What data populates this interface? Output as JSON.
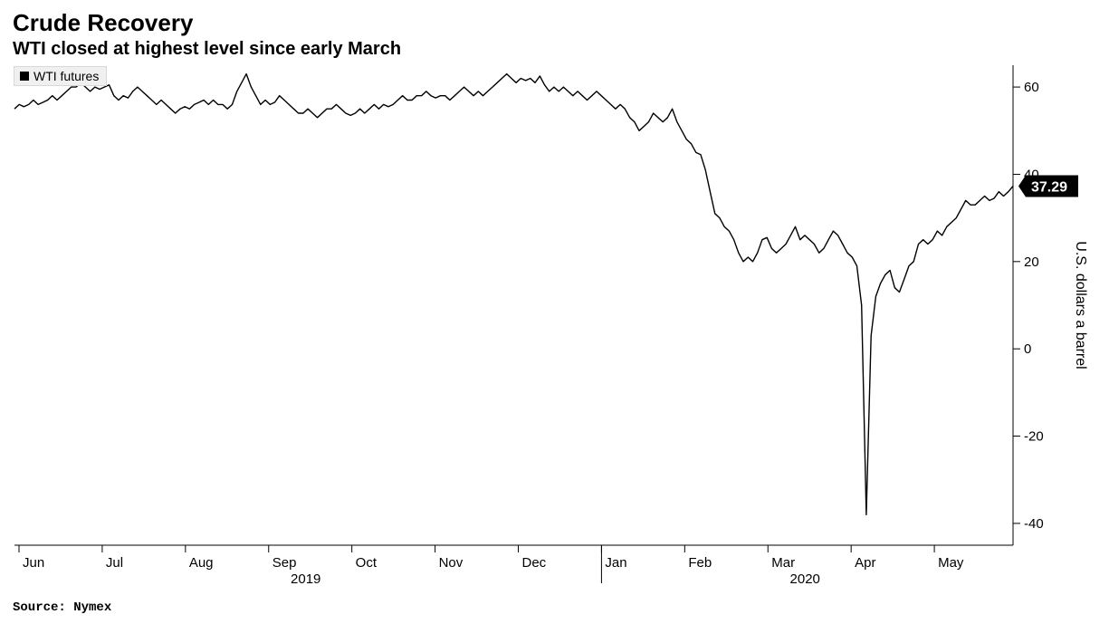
{
  "title": "Crude Recovery",
  "subtitle": "WTI closed at highest level since early March",
  "legend": {
    "label": "WTI futures",
    "marker_color": "#000000"
  },
  "y_axis": {
    "title": "U.S. dollars a barrel",
    "min": -45,
    "max": 65,
    "ticks": [
      -40,
      -20,
      0,
      20,
      40,
      60
    ]
  },
  "x_axis": {
    "labels": [
      "Jun",
      "Jul",
      "Aug",
      "Sep",
      "Oct",
      "Nov",
      "Dec",
      "Jan",
      "Feb",
      "Mar",
      "Apr",
      "May"
    ],
    "year_groups": [
      {
        "label": "2019",
        "center_between": [
          2,
          4
        ]
      },
      {
        "label": "2020",
        "center_between": [
          8,
          10
        ]
      }
    ],
    "year_divider_after_index": 6
  },
  "last_value": 37.29,
  "chart_style": {
    "line_color": "#000000",
    "line_width": 1.4,
    "badge_bg": "#000000",
    "badge_text": "#ffffff",
    "tick_color": "#000000",
    "axis_color": "#000000",
    "plot_bg": "#ffffff",
    "title_fontsize": 26,
    "subtitle_fontsize": 20,
    "tick_fontsize": 15
  },
  "series": [
    55,
    56,
    55.5,
    56,
    57,
    56,
    56.5,
    57,
    58,
    57,
    58,
    59,
    60,
    60,
    61,
    60,
    59,
    60,
    59.5,
    60,
    60.5,
    58,
    57,
    58,
    57.5,
    59,
    60,
    59,
    58,
    57,
    56,
    57,
    56,
    55,
    54,
    55,
    55.5,
    55,
    56,
    56.5,
    57,
    56,
    57,
    56,
    56,
    55,
    56,
    59,
    61,
    63,
    60,
    58,
    56,
    57,
    56,
    56.5,
    58,
    57,
    56,
    55,
    54,
    54,
    55,
    54,
    53,
    54,
    55,
    55,
    56,
    55,
    54,
    53.5,
    54,
    55,
    54,
    55,
    56,
    55,
    56,
    55.5,
    56,
    57,
    58,
    57,
    57,
    58,
    58,
    59,
    58,
    57.5,
    58,
    58,
    57,
    58,
    59,
    60,
    59,
    58,
    59,
    58,
    59,
    60,
    61,
    62,
    63,
    62,
    61,
    62,
    61.5,
    62,
    61,
    62.5,
    60.5,
    59,
    60,
    59,
    60,
    59,
    58,
    59,
    58,
    57,
    58,
    59,
    58,
    57,
    56,
    55,
    56,
    55,
    53,
    52,
    50,
    51,
    52,
    54,
    53,
    52,
    53,
    55,
    52,
    50,
    48,
    47,
    45,
    44.5,
    41,
    36,
    31,
    30,
    28,
    27,
    25,
    22,
    20,
    21,
    20,
    22,
    25,
    25.5,
    23,
    22,
    23,
    24,
    26,
    28,
    25,
    26,
    25,
    24,
    22,
    23,
    25,
    27,
    26,
    24,
    22,
    21,
    19,
    10,
    -38,
    3,
    12,
    15,
    17,
    18,
    14,
    13,
    16,
    19,
    20,
    24,
    25,
    24,
    25,
    27,
    26,
    28,
    29,
    30,
    32,
    34,
    33,
    33,
    34,
    35,
    34,
    34.5,
    36,
    35,
    36,
    37.29
  ],
  "source": "Source: Nymex"
}
